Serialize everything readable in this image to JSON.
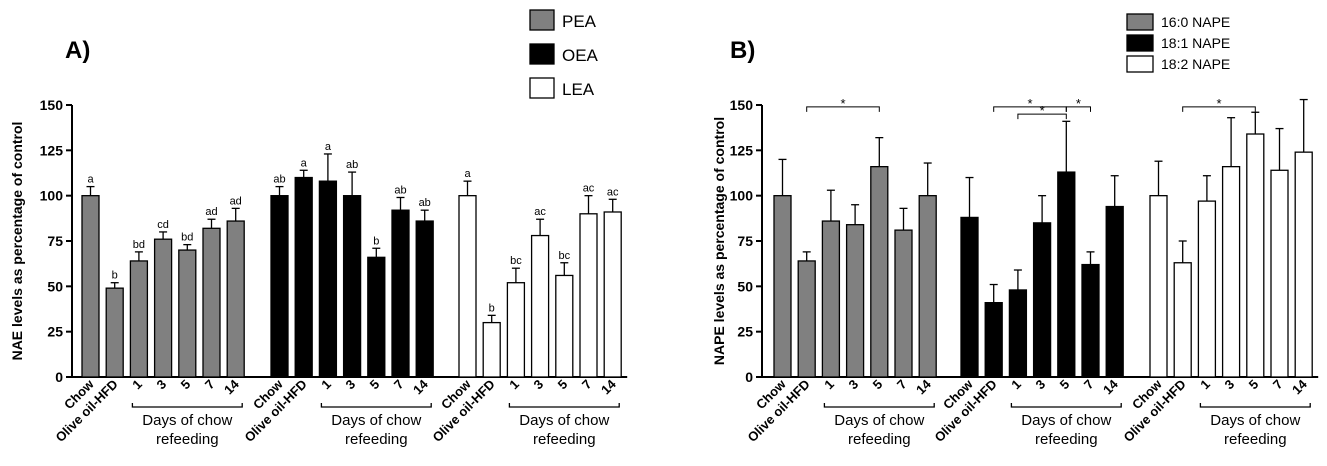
{
  "chart_data": [
    {
      "type": "bar",
      "panel_label": "A)",
      "ylabel": "NAE levels as percentage of control",
      "ylim": [
        0,
        150
      ],
      "yticks": [
        0,
        25,
        50,
        75,
        100,
        125,
        150
      ],
      "group_tick_labels": [
        "Chow",
        "Olive oil-HFD",
        "1",
        "3",
        "5",
        "7",
        "14"
      ],
      "day_bracket_label": [
        "Days of chow",
        "refeeding"
      ],
      "legend": {
        "placement": "top-center",
        "entries": [
          "PEA",
          "OEA",
          "LEA"
        ]
      },
      "series": [
        {
          "name": "PEA",
          "color": "#808080",
          "values": [
            100,
            49,
            64,
            76,
            70,
            82,
            86
          ],
          "errors": [
            5,
            3,
            5,
            4,
            3,
            5,
            7
          ],
          "letters": [
            "a",
            "b",
            "bd",
            "cd",
            "bd",
            "ad",
            "ad"
          ]
        },
        {
          "name": "OEA",
          "color": "#000000",
          "values": [
            100,
            110,
            108,
            100,
            66,
            92,
            86
          ],
          "errors": [
            5,
            4,
            15,
            13,
            5,
            7,
            6
          ],
          "letters": [
            "ab",
            "a",
            "a",
            "ab",
            "b",
            "ab",
            "ab"
          ]
        },
        {
          "name": "LEA",
          "color": "#ffffff",
          "values": [
            100,
            30,
            52,
            78,
            56,
            90,
            91
          ],
          "errors": [
            8,
            4,
            8,
            9,
            7,
            10,
            7
          ],
          "letters": [
            "a",
            "b",
            "bc",
            "ac",
            "bc",
            "ac",
            "ac"
          ]
        }
      ]
    },
    {
      "type": "bar",
      "panel_label": "B)",
      "ylabel": "NAPE levels as percentage of control",
      "ylim": [
        0,
        150
      ],
      "yticks": [
        0,
        25,
        50,
        75,
        100,
        125,
        150
      ],
      "group_tick_labels": [
        "Chow",
        "Olive oil-HFD",
        "1",
        "3",
        "5",
        "7",
        "14"
      ],
      "day_bracket_label": [
        "Days of chow",
        "refeeding"
      ],
      "legend": {
        "placement": "top-right",
        "entries": [
          "16:0 NAPE",
          "18:1 NAPE",
          "18:2 NAPE"
        ]
      },
      "series": [
        {
          "name": "16:0 NAPE",
          "color": "#808080",
          "values": [
            100,
            64,
            86,
            84,
            116,
            81,
            100
          ],
          "errors": [
            20,
            5,
            17,
            11,
            16,
            12,
            18
          ]
        },
        {
          "name": "18:1 NAPE",
          "color": "#000000",
          "values": [
            88,
            41,
            48,
            85,
            113,
            62,
            94
          ],
          "errors": [
            22,
            10,
            11,
            15,
            28,
            7,
            17
          ]
        },
        {
          "name": "18:2 NAPE",
          "color": "#ffffff",
          "values": [
            100,
            63,
            97,
            116,
            134,
            114,
            124
          ],
          "errors": [
            19,
            12,
            14,
            27,
            12,
            23,
            29
          ]
        }
      ],
      "significance": [
        {
          "series": 0,
          "from": 1,
          "to": 4,
          "label": "*",
          "y": 149
        },
        {
          "series": 1,
          "from": 1,
          "to": 4,
          "label": "*",
          "y": 149
        },
        {
          "series": 1,
          "from": 2,
          "to": 4,
          "label": "*",
          "y": 145
        },
        {
          "series": 1,
          "from": 4,
          "to": 5,
          "label": "*",
          "y": 149
        },
        {
          "series": 2,
          "from": 1,
          "to": 4,
          "label": "*",
          "y": 149
        }
      ]
    }
  ]
}
